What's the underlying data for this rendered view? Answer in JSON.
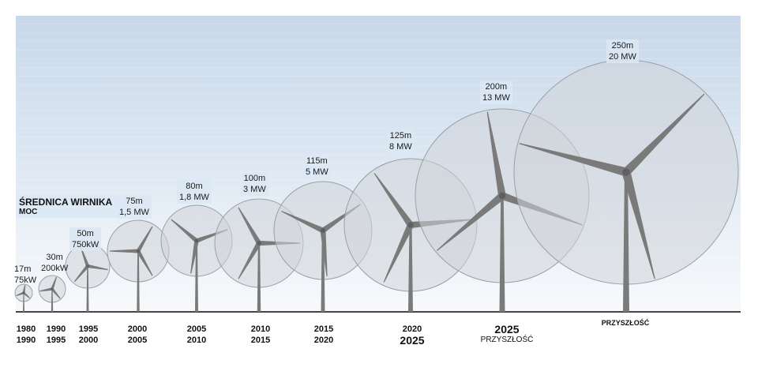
{
  "legend": {
    "title": "ŚREDNICA WIRNIKA",
    "subtitle": "MOC"
  },
  "turbines": [
    {
      "diameter": "17m",
      "power": "75kW"
    },
    {
      "diameter": "30m",
      "power": "200kW"
    },
    {
      "diameter": "50m",
      "power": "750kW"
    },
    {
      "diameter": "75m",
      "power": "1,5 MW"
    },
    {
      "diameter": "80m",
      "power": "1,8 MW"
    },
    {
      "diameter": "100m",
      "power": "3 MW"
    },
    {
      "diameter": "115m",
      "power": "5 MW"
    },
    {
      "diameter": "125m",
      "power": "8 MW"
    },
    {
      "diameter": "200m",
      "power": "13 MW"
    },
    {
      "diameter": "250m",
      "power": "20 MW"
    }
  ],
  "years": [
    {
      "a": "1980",
      "b": "1990"
    },
    {
      "a": "1990",
      "b": "1995"
    },
    {
      "a": "1995",
      "b": "2000"
    },
    {
      "a": "2000",
      "b": "2005"
    },
    {
      "a": "2005",
      "b": "2010"
    },
    {
      "a": "2010",
      "b": "2015"
    },
    {
      "a": "2015",
      "b": "2020"
    },
    {
      "a": "2020",
      "b": "2025"
    },
    {
      "a": "2025",
      "b": "PRZYSZŁOŚĆ"
    },
    {
      "a": "PRZYSZŁOŚĆ",
      "b": ""
    }
  ],
  "colors": {
    "tower": "#7a7a7a",
    "disc": "#cfd3d8",
    "disc_stroke": "#9aa0a6",
    "ground": "#444444"
  }
}
